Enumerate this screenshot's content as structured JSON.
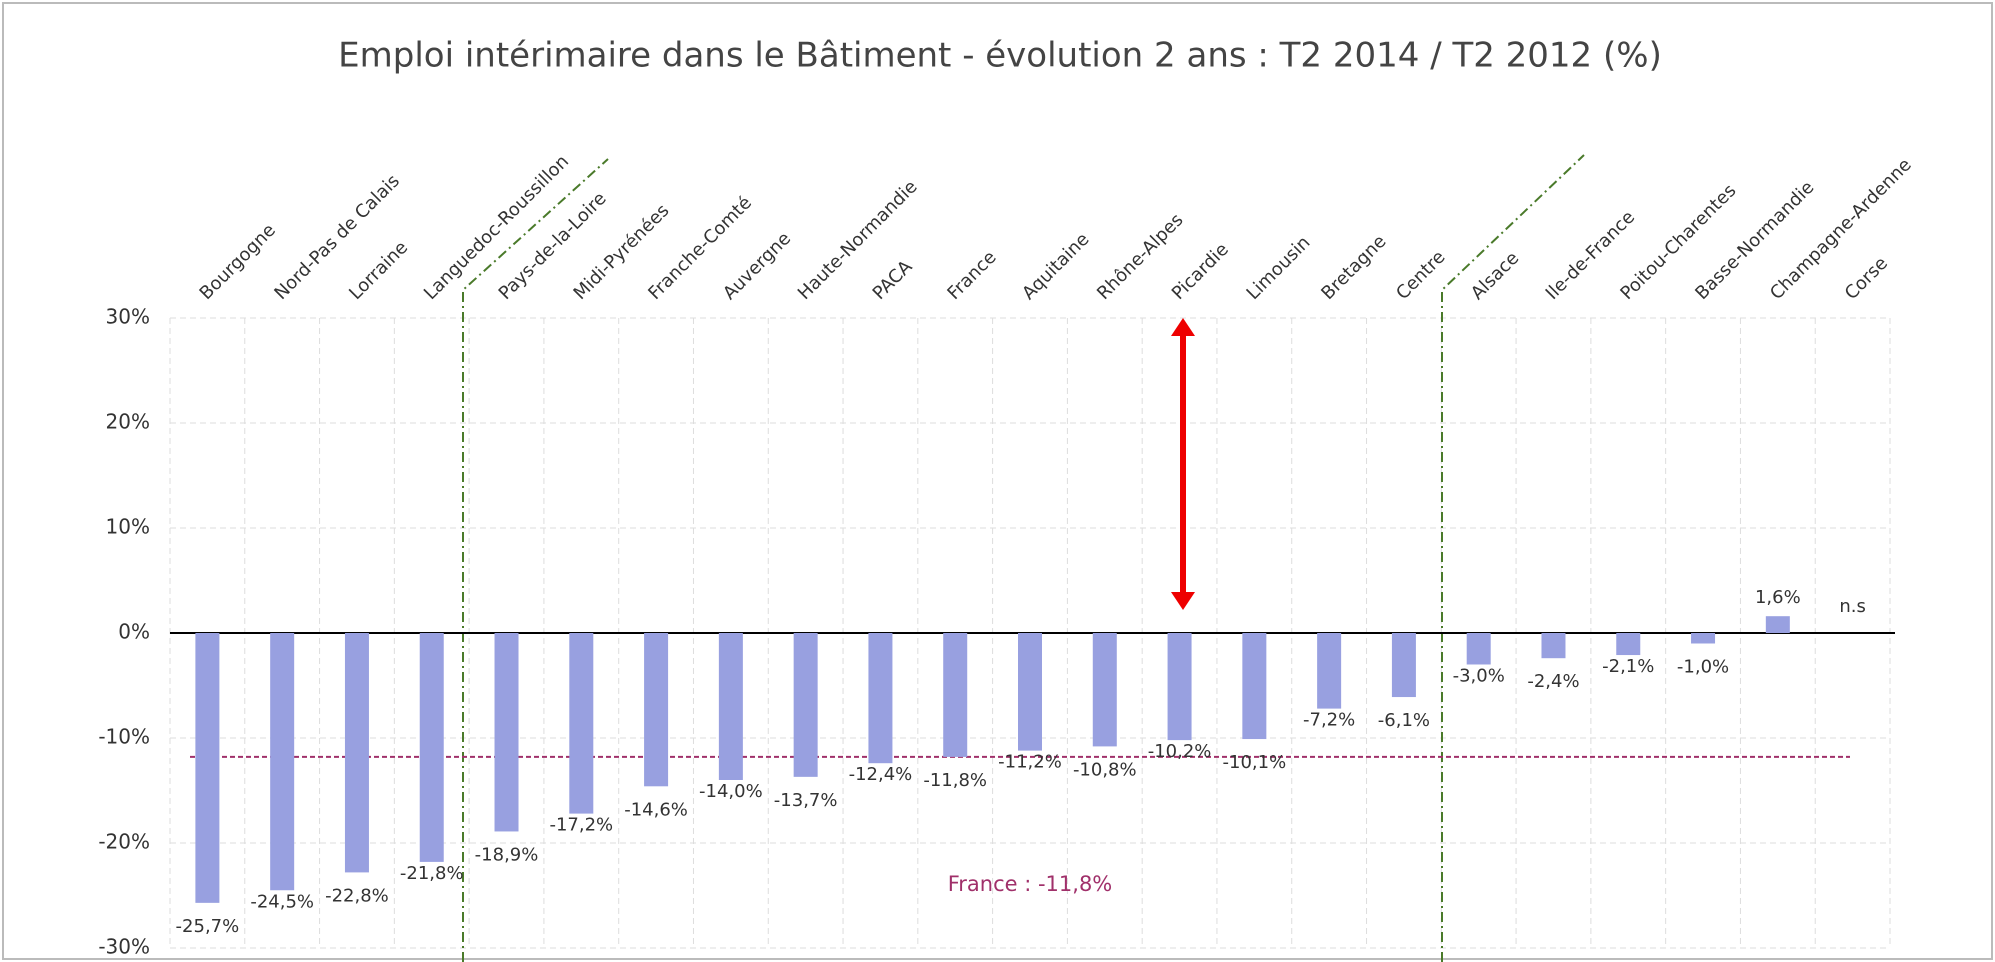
{
  "chart_data": {
    "type": "bar",
    "title": "Emploi intérimaire dans le Bâtiment - évolution 2 ans : T2 2014 / T2 2012 (%)",
    "categories": [
      "Bourgogne",
      "Nord-Pas de Calais",
      "Lorraine",
      "Languedoc-Roussillon",
      "Pays-de-la-Loire",
      "Midi-Pyrénées",
      "Franche-Comté",
      "Auvergne",
      "Haute-Normandie",
      "PACA",
      "France",
      "Aquitaine",
      "Rhône-Alpes",
      "Picardie",
      "Limousin",
      "Bretagne",
      "Centre",
      "Alsace",
      "Ile-de-France",
      "Poitou-Charentes",
      "Basse-Normandie",
      "Champagne-Ardenne",
      "Corse"
    ],
    "values": [
      -25.7,
      -24.5,
      -22.8,
      -21.8,
      -18.9,
      -17.2,
      -14.6,
      -14.0,
      -13.7,
      -12.4,
      -11.8,
      -11.2,
      -10.8,
      -10.2,
      -10.1,
      -7.2,
      -6.1,
      -3.0,
      -2.4,
      -2.1,
      -1.0,
      1.6,
      null
    ],
    "value_labels": [
      "-25,7%",
      "-24,5%",
      "-22,8%",
      "-21,8%",
      "-18,9%",
      "-17,2%",
      "-14,6%",
      "-14,0%",
      "-13,7%",
      "-12,4%",
      "-11,8%",
      "-11,2%",
      "-10,8%",
      "-10,2%",
      "-10,1%",
      "-7,2%",
      "-6,1%",
      "-3,0%",
      "-2,4%",
      "-2,1%",
      "-1,0%",
      "1,6%",
      "n.s"
    ],
    "color": "#98a0e0",
    "ylim": [
      -30,
      30
    ],
    "yticks": [
      {
        "value": -30,
        "label": "-30%"
      },
      {
        "value": -20,
        "label": "-20%"
      },
      {
        "value": -10,
        "label": "-10%"
      },
      {
        "value": 0,
        "label": "0%"
      },
      {
        "value": 10,
        "label": "10%"
      },
      {
        "value": 20,
        "label": "20%"
      },
      {
        "value": 30,
        "label": "30%"
      }
    ],
    "grid": true,
    "reference_line": {
      "value": -11.8,
      "label": "France : -11,8%",
      "color": "#a0306a"
    }
  }
}
